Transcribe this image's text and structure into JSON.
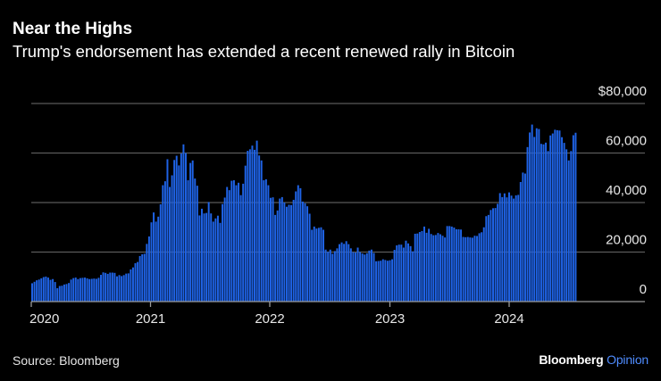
{
  "chart_data": {
    "type": "bar",
    "title": "Near the Highs",
    "subtitle": "Trump's endorsement has extended a recent renewed rally in Bitcoin",
    "xlabel": "",
    "ylabel": "",
    "frequency": "weekly",
    "x_start": "2020-01",
    "x_ticks": [
      "2020",
      "2021",
      "2022",
      "2023",
      "2024"
    ],
    "y_ticks": [
      0,
      20000,
      40000,
      60000,
      80000
    ],
    "y_tick_labels": [
      "0",
      "20,000",
      "40,000",
      "60,000",
      "$80,000"
    ],
    "ylim": [
      0,
      80000
    ],
    "grid": true,
    "bar_color": "#1f63e6",
    "values": [
      7400,
      8000,
      8600,
      8900,
      9400,
      9900,
      10100,
      9700,
      8800,
      9100,
      7900,
      5400,
      6300,
      6400,
      6900,
      7100,
      7500,
      8900,
      9500,
      9700,
      9100,
      9500,
      9600,
      9700,
      9400,
      9100,
      9200,
      9300,
      9200,
      9600,
      10800,
      11800,
      11600,
      11200,
      11700,
      11700,
      11600,
      10200,
      10700,
      10300,
      10700,
      11300,
      11400,
      13000,
      13800,
      15500,
      16000,
      18400,
      19100,
      19300,
      23300,
      26300,
      32000,
      36000,
      32300,
      34300,
      39300,
      47000,
      48600,
      57500,
      46300,
      51000,
      57200,
      58900,
      55000,
      59800,
      63500,
      60000,
      49000,
      56000,
      57000,
      49700,
      46800,
      34800,
      37500,
      35600,
      35800,
      40200,
      35600,
      32300,
      33600,
      34700,
      31800,
      39400,
      42000,
      46300,
      45000,
      48800,
      49000,
      47000,
      48000,
      43000,
      47600,
      54900,
      60900,
      61500,
      63000,
      61300,
      65000,
      59000,
      57000,
      49000,
      49400,
      47000,
      41900,
      42100,
      35000,
      36800,
      41600,
      42200,
      40000,
      38300,
      39100,
      39000,
      41100,
      44500,
      47000,
      45800,
      40400,
      39700,
      38500,
      35500,
      29000,
      30300,
      29500,
      29800,
      30000,
      29000,
      21000,
      20100,
      21000,
      19300,
      20400,
      21500,
      23200,
      23900,
      23300,
      24400,
      23200,
      21500,
      20000,
      19800,
      21800,
      20000,
      19400,
      19000,
      19500,
      20600,
      21000,
      19600,
      16300,
      16400,
      16500,
      17100,
      16800,
      16500,
      16700,
      17100,
      20900,
      22700,
      23000,
      23000,
      21800,
      24600,
      23500,
      22400,
      20300,
      27400,
      27500,
      28100,
      28500,
      30300,
      27800,
      29400,
      27300,
      26800,
      26900,
      27700,
      27200,
      26600,
      25900,
      30500,
      30500,
      30300,
      29900,
      29200,
      29200,
      29100,
      26100,
      26000,
      26100,
      25900,
      25800,
      26600,
      26500,
      27600,
      28000,
      30000,
      34500,
      35000,
      37000,
      37700,
      37800,
      39500,
      43800,
      42200,
      43700,
      42100,
      44100,
      42800,
      41600,
      42900,
      43100,
      48300,
      52100,
      51700,
      62400,
      68300,
      71500,
      66500,
      70000,
      69700,
      63700,
      63500,
      64200,
      60800,
      67100,
      67900,
      69400,
      69200,
      69100,
      66400,
      64100,
      61500,
      57000,
      60800,
      67200,
      68200
    ]
  },
  "footer": {
    "source": "Source: Bloomberg",
    "logo_brand": "Bloomberg",
    "logo_section": "Opinion"
  }
}
